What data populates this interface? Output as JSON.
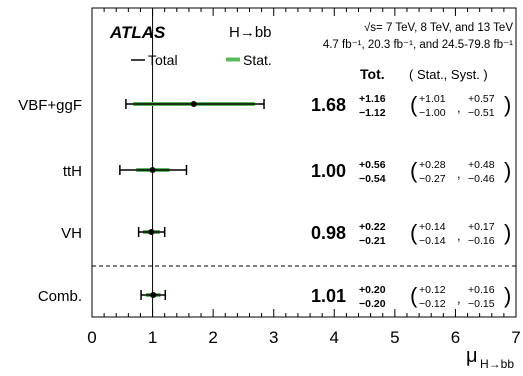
{
  "chart_data": {
    "type": "forest",
    "experiment": "ATLAS",
    "process": "H→bb",
    "energy_line": "√s= 7 TeV, 8 TeV, and 13 TeV",
    "lumi_line": "4.7 fb⁻¹, 20.3 fb⁻¹, and 24.5-79.8 fb⁻¹",
    "legend": [
      {
        "name": "Total",
        "color": "#000000"
      },
      {
        "name": "Stat.",
        "color": "#5cb85c"
      }
    ],
    "column_headers": {
      "tot": "Tot.",
      "breakdown": "( Stat., Syst. )"
    },
    "xlabel": "μ",
    "xlabel_sub": "H→bb",
    "xlim": [
      0,
      7
    ],
    "xticks": [
      0,
      1,
      2,
      3,
      4,
      5,
      6,
      7
    ],
    "reference_line": 1,
    "rows": [
      {
        "label": "VBF+ggF",
        "mu": 1.68,
        "mu_text": "1.68",
        "tot_up": 1.16,
        "tot_dn": 1.12,
        "tot_up_text": "+1.16",
        "tot_dn_text": "−1.12",
        "stat_up": 1.01,
        "stat_dn": 1.0,
        "stat_up_text": "+1.01",
        "stat_dn_text": "−1.00",
        "syst_up_text": "+0.57",
        "syst_dn_text": "−0.51"
      },
      {
        "label": "ttH",
        "mu": 1.0,
        "mu_text": "1.00",
        "tot_up": 0.56,
        "tot_dn": 0.54,
        "tot_up_text": "+0.56",
        "tot_dn_text": "−0.54",
        "stat_up": 0.28,
        "stat_dn": 0.27,
        "stat_up_text": "+0.28",
        "stat_dn_text": "−0.27",
        "syst_up_text": "+0.48",
        "syst_dn_text": "−0.46"
      },
      {
        "label": "VH",
        "mu": 0.98,
        "mu_text": "0.98",
        "tot_up": 0.22,
        "tot_dn": 0.21,
        "tot_up_text": "+0.22",
        "tot_dn_text": "−0.21",
        "stat_up": 0.14,
        "stat_dn": 0.14,
        "stat_up_text": "+0.14",
        "stat_dn_text": "−0.14",
        "syst_up_text": "+0.17",
        "syst_dn_text": "−0.16"
      },
      {
        "label": "Comb.",
        "mu": 1.01,
        "mu_text": "1.01",
        "tot_up": 0.2,
        "tot_dn": 0.2,
        "tot_up_text": "+0.20",
        "tot_dn_text": "−0.20",
        "stat_up": 0.12,
        "stat_dn": 0.12,
        "stat_up_text": "+0.12",
        "stat_dn_text": "−0.12",
        "syst_up_text": "+0.16",
        "syst_dn_text": "−0.15"
      }
    ]
  }
}
